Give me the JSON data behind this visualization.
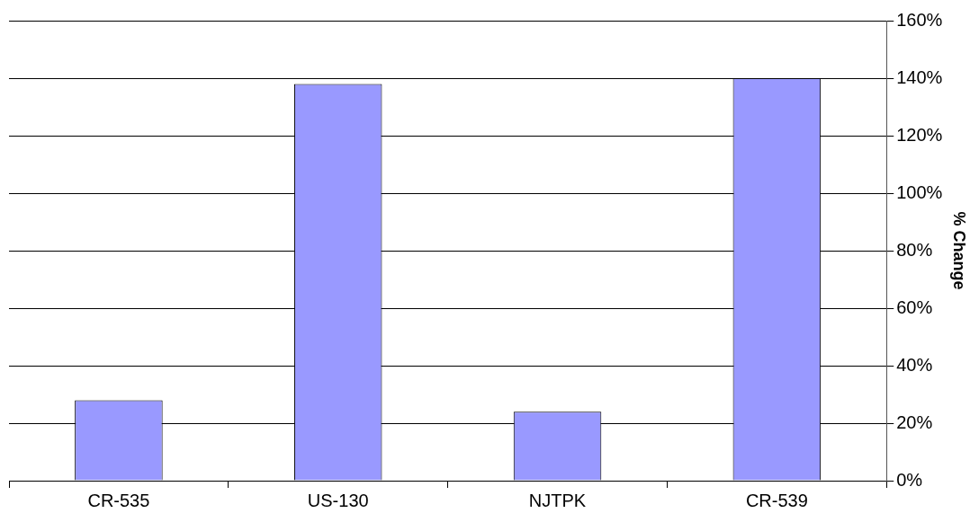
{
  "chart_data": {
    "type": "bar",
    "ylabel": "% Change",
    "categories": [
      "CR-535",
      "US-130",
      "NJTPK",
      "CR-539"
    ],
    "values": [
      28,
      138,
      24,
      140
    ],
    "color": "#9999ff",
    "ylim": [
      0,
      160
    ],
    "yticks": [
      {
        "value": 0,
        "label": "0%"
      },
      {
        "value": 20,
        "label": "20%"
      },
      {
        "value": 40,
        "label": "40%"
      },
      {
        "value": 60,
        "label": "60%"
      },
      {
        "value": 80,
        "label": "80%"
      },
      {
        "value": 100,
        "label": "100%"
      },
      {
        "value": 120,
        "label": "120%"
      },
      {
        "value": 140,
        "label": "140%"
      },
      {
        "value": 160,
        "label": "160%"
      }
    ],
    "grid": "y"
  }
}
